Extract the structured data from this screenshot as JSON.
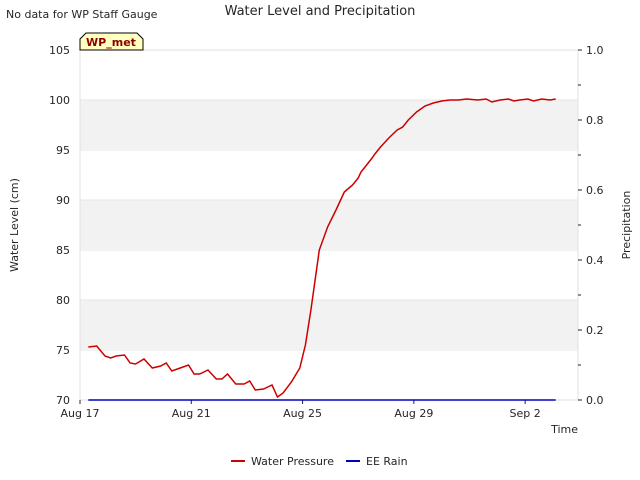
{
  "note": "No data for WP Staff Gauge",
  "chart_data": {
    "type": "line",
    "title": "Water Level and Precipitation",
    "xlabel": "Time",
    "ylabel": "Water Level (cm)",
    "ylabel_right": "Precipitation",
    "badge": "WP_met",
    "x_ticks": [
      "Aug 17",
      "Aug 21",
      "Aug 25",
      "Aug 29",
      "Sep 2"
    ],
    "x_tick_days": [
      0,
      4,
      8,
      12,
      16
    ],
    "xlim_days": [
      0,
      17.9
    ],
    "ylim": [
      70,
      105
    ],
    "y_ticks": [
      "70",
      "75",
      "80",
      "85",
      "90",
      "95",
      "100",
      "105"
    ],
    "y2lim": [
      0,
      1.0
    ],
    "y2_ticks": [
      "0.0",
      "0.2",
      "0.4",
      "0.6",
      "0.8",
      "1.0"
    ],
    "legend_position": "bottom-center",
    "series": [
      {
        "name": "Water Pressure",
        "axis": "left",
        "color": "#cc0000",
        "x_days": [
          0.3,
          0.6,
          0.9,
          1.1,
          1.3,
          1.6,
          1.8,
          2.0,
          2.3,
          2.6,
          2.9,
          3.1,
          3.3,
          3.6,
          3.9,
          4.1,
          4.3,
          4.6,
          4.9,
          5.1,
          5.3,
          5.6,
          5.9,
          6.1,
          6.3,
          6.6,
          6.9,
          7.1,
          7.3,
          7.6,
          7.9,
          8.1,
          8.3,
          8.6,
          8.9,
          9.2,
          9.5,
          9.8,
          10.0,
          10.1,
          10.3,
          10.5,
          10.6,
          10.8,
          11.1,
          11.4,
          11.6,
          11.8,
          12.1,
          12.4,
          12.7,
          13.0,
          13.3,
          13.6,
          13.9,
          14.3,
          14.6,
          14.8,
          15.1,
          15.4,
          15.6,
          15.8,
          16.1,
          16.3,
          16.6,
          16.9,
          17.1
        ],
        "values": [
          75.3,
          75.4,
          74.4,
          74.2,
          74.4,
          74.5,
          73.7,
          73.6,
          74.1,
          73.2,
          73.4,
          73.7,
          72.9,
          73.2,
          73.5,
          72.6,
          72.6,
          73.0,
          72.1,
          72.1,
          72.6,
          71.6,
          71.6,
          71.9,
          71.0,
          71.1,
          71.5,
          70.3,
          70.7,
          71.8,
          73.2,
          75.5,
          79.0,
          85.0,
          87.3,
          89.0,
          90.8,
          91.5,
          92.2,
          92.8,
          93.5,
          94.2,
          94.6,
          95.3,
          96.2,
          97.0,
          97.3,
          98.0,
          98.8,
          99.4,
          99.7,
          99.9,
          100.0,
          100.0,
          100.1,
          100.0,
          100.1,
          99.8,
          100.0,
          100.1,
          99.9,
          100.0,
          100.1,
          99.9,
          100.1,
          100.0,
          100.1
        ]
      },
      {
        "name": "EE Rain",
        "axis": "right",
        "color": "#0000bb",
        "x_days": [
          0.3,
          17.1
        ],
        "values": [
          0.0,
          0.0
        ]
      }
    ]
  }
}
